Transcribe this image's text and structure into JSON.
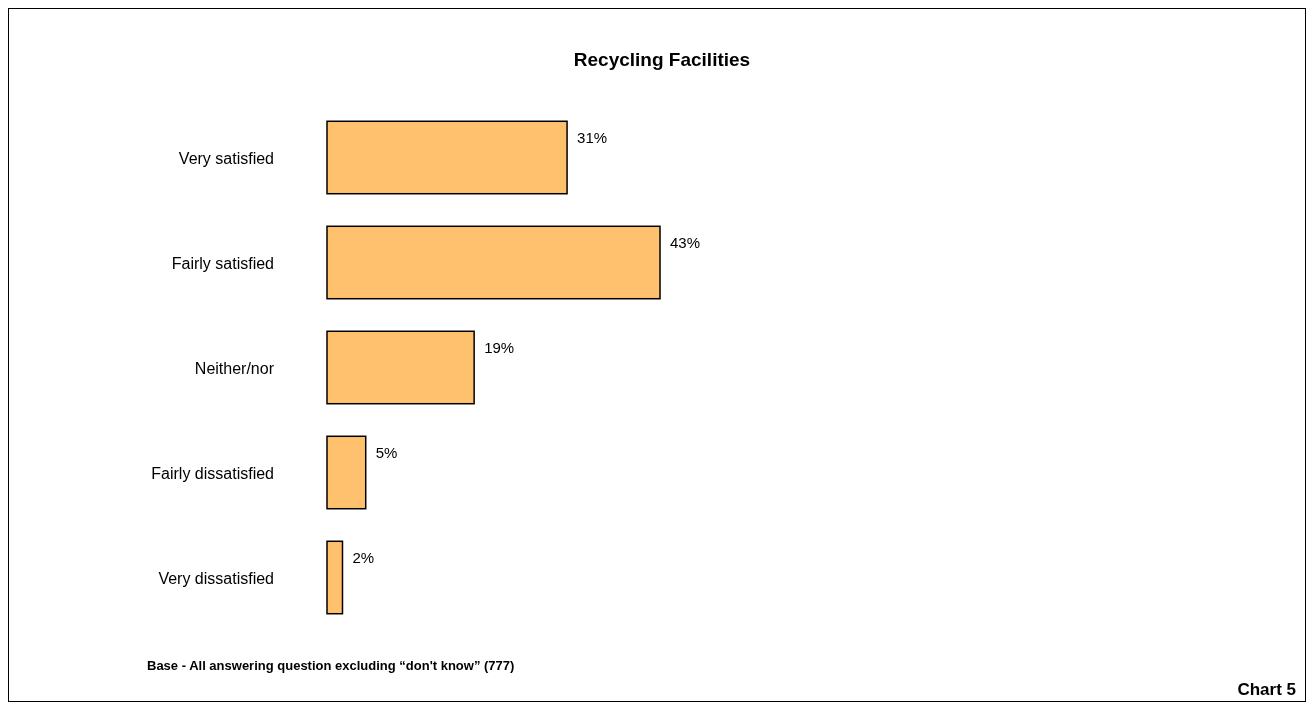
{
  "chart_data": {
    "type": "bar",
    "orientation": "horizontal",
    "title": "Recycling Facilities",
    "categories": [
      "Very satisfied",
      "Fairly satisfied",
      "Neither/nor",
      "Fairly dissatisfied",
      "Very dissatisfied"
    ],
    "values": [
      31,
      43,
      19,
      5,
      2
    ],
    "color": "#ffc16d",
    "value_labels": [
      "31%",
      "43%",
      "19%",
      "5%",
      "2%"
    ],
    "annotations": [
      "Base - All answering question excluding “don't know” (777)",
      "Chart 5"
    ]
  }
}
